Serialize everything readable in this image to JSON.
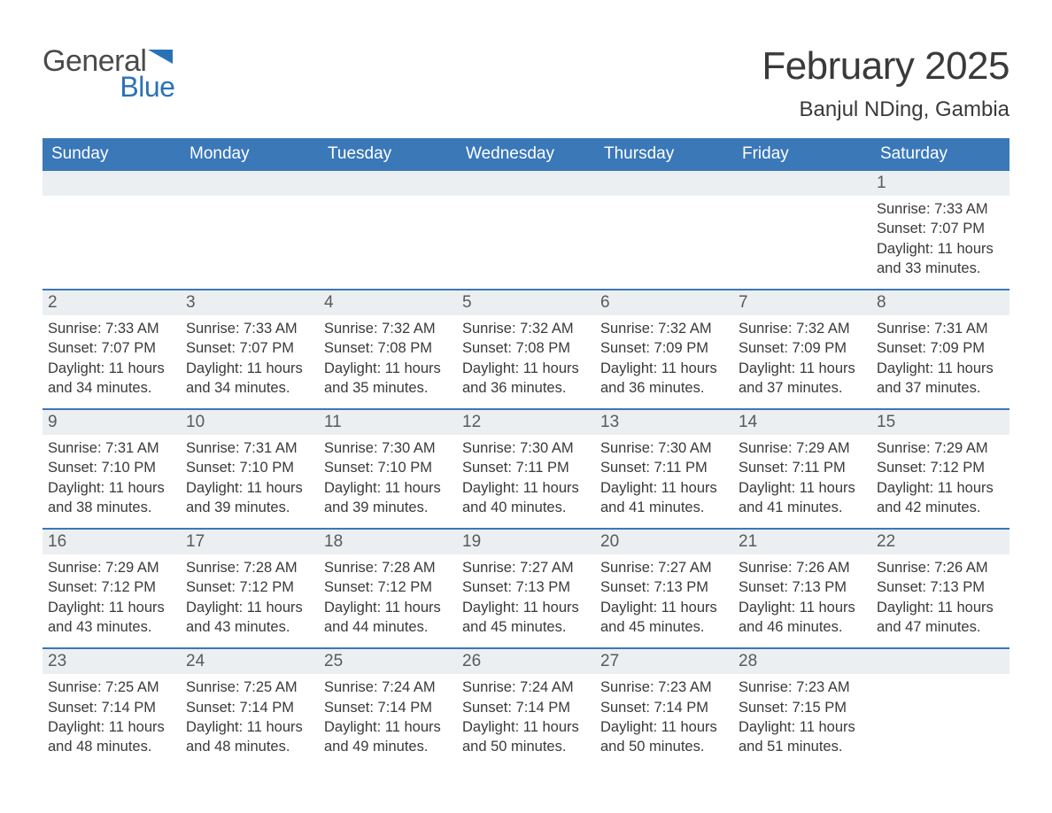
{
  "logo": {
    "text1": "General",
    "text2": "Blue"
  },
  "title": "February 2025",
  "location": "Banjul NDing, Gambia",
  "colors": {
    "header_bg": "#3a78b8",
    "row_divider": "#3a78b8",
    "daybar_bg": "#eceff1",
    "logo_blue": "#2a72b8",
    "text": "#3a3a3a"
  },
  "weekdays": [
    "Sunday",
    "Monday",
    "Tuesday",
    "Wednesday",
    "Thursday",
    "Friday",
    "Saturday"
  ],
  "weeks": [
    [
      null,
      null,
      null,
      null,
      null,
      null,
      {
        "n": "1",
        "sr": "7:33 AM",
        "ss": "7:07 PM",
        "dl": "11 hours and 33 minutes."
      }
    ],
    [
      {
        "n": "2",
        "sr": "7:33 AM",
        "ss": "7:07 PM",
        "dl": "11 hours and 34 minutes."
      },
      {
        "n": "3",
        "sr": "7:33 AM",
        "ss": "7:07 PM",
        "dl": "11 hours and 34 minutes."
      },
      {
        "n": "4",
        "sr": "7:32 AM",
        "ss": "7:08 PM",
        "dl": "11 hours and 35 minutes."
      },
      {
        "n": "5",
        "sr": "7:32 AM",
        "ss": "7:08 PM",
        "dl": "11 hours and 36 minutes."
      },
      {
        "n": "6",
        "sr": "7:32 AM",
        "ss": "7:09 PM",
        "dl": "11 hours and 36 minutes."
      },
      {
        "n": "7",
        "sr": "7:32 AM",
        "ss": "7:09 PM",
        "dl": "11 hours and 37 minutes."
      },
      {
        "n": "8",
        "sr": "7:31 AM",
        "ss": "7:09 PM",
        "dl": "11 hours and 37 minutes."
      }
    ],
    [
      {
        "n": "9",
        "sr": "7:31 AM",
        "ss": "7:10 PM",
        "dl": "11 hours and 38 minutes."
      },
      {
        "n": "10",
        "sr": "7:31 AM",
        "ss": "7:10 PM",
        "dl": "11 hours and 39 minutes."
      },
      {
        "n": "11",
        "sr": "7:30 AM",
        "ss": "7:10 PM",
        "dl": "11 hours and 39 minutes."
      },
      {
        "n": "12",
        "sr": "7:30 AM",
        "ss": "7:11 PM",
        "dl": "11 hours and 40 minutes."
      },
      {
        "n": "13",
        "sr": "7:30 AM",
        "ss": "7:11 PM",
        "dl": "11 hours and 41 minutes."
      },
      {
        "n": "14",
        "sr": "7:29 AM",
        "ss": "7:11 PM",
        "dl": "11 hours and 41 minutes."
      },
      {
        "n": "15",
        "sr": "7:29 AM",
        "ss": "7:12 PM",
        "dl": "11 hours and 42 minutes."
      }
    ],
    [
      {
        "n": "16",
        "sr": "7:29 AM",
        "ss": "7:12 PM",
        "dl": "11 hours and 43 minutes."
      },
      {
        "n": "17",
        "sr": "7:28 AM",
        "ss": "7:12 PM",
        "dl": "11 hours and 43 minutes."
      },
      {
        "n": "18",
        "sr": "7:28 AM",
        "ss": "7:12 PM",
        "dl": "11 hours and 44 minutes."
      },
      {
        "n": "19",
        "sr": "7:27 AM",
        "ss": "7:13 PM",
        "dl": "11 hours and 45 minutes."
      },
      {
        "n": "20",
        "sr": "7:27 AM",
        "ss": "7:13 PM",
        "dl": "11 hours and 45 minutes."
      },
      {
        "n": "21",
        "sr": "7:26 AM",
        "ss": "7:13 PM",
        "dl": "11 hours and 46 minutes."
      },
      {
        "n": "22",
        "sr": "7:26 AM",
        "ss": "7:13 PM",
        "dl": "11 hours and 47 minutes."
      }
    ],
    [
      {
        "n": "23",
        "sr": "7:25 AM",
        "ss": "7:14 PM",
        "dl": "11 hours and 48 minutes."
      },
      {
        "n": "24",
        "sr": "7:25 AM",
        "ss": "7:14 PM",
        "dl": "11 hours and 48 minutes."
      },
      {
        "n": "25",
        "sr": "7:24 AM",
        "ss": "7:14 PM",
        "dl": "11 hours and 49 minutes."
      },
      {
        "n": "26",
        "sr": "7:24 AM",
        "ss": "7:14 PM",
        "dl": "11 hours and 50 minutes."
      },
      {
        "n": "27",
        "sr": "7:23 AM",
        "ss": "7:14 PM",
        "dl": "11 hours and 50 minutes."
      },
      {
        "n": "28",
        "sr": "7:23 AM",
        "ss": "7:15 PM",
        "dl": "11 hours and 51 minutes."
      },
      null
    ]
  ],
  "labels": {
    "sunrise": "Sunrise: ",
    "sunset": "Sunset: ",
    "daylight": "Daylight: "
  }
}
